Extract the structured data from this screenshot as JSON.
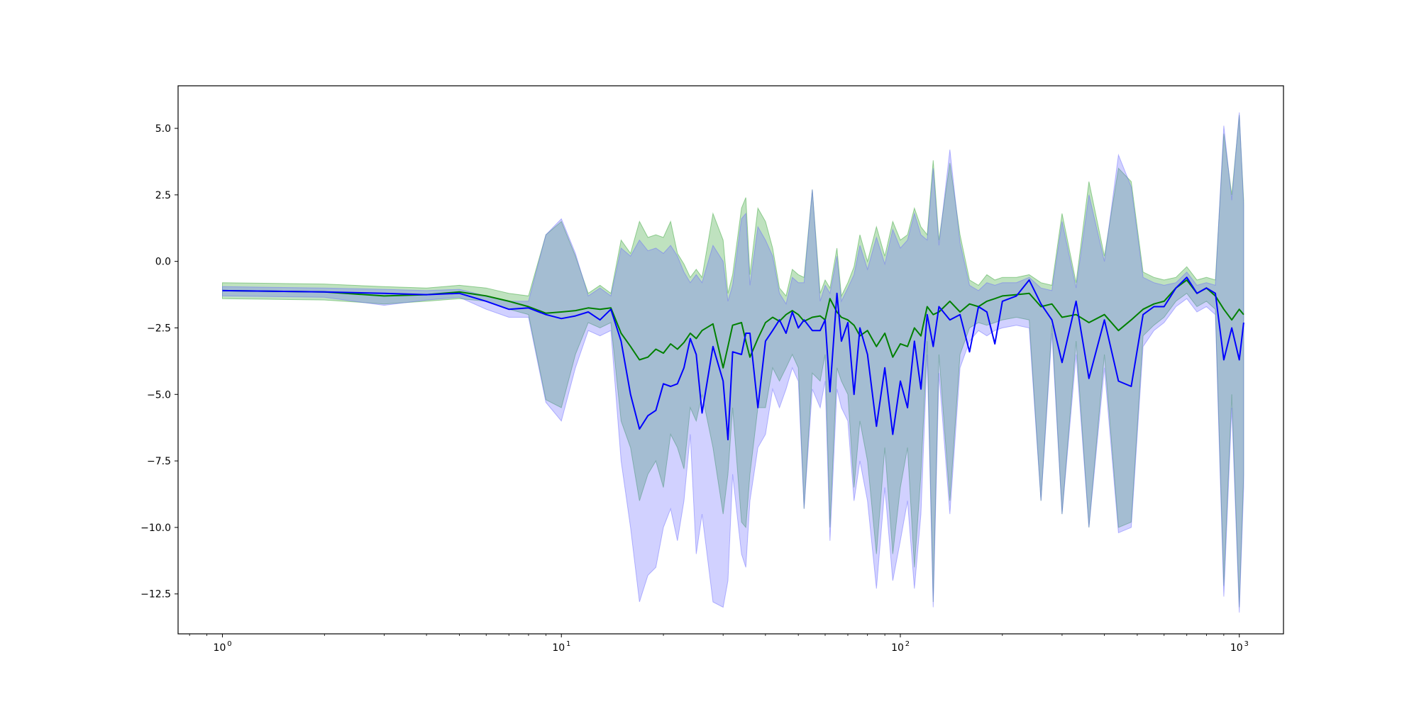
{
  "chart_data": {
    "type": "line",
    "title": "",
    "xlabel": "",
    "ylabel": "",
    "xscale": "log",
    "xlim": [
      0.74,
      1350
    ],
    "ylim": [
      -14.0,
      6.6
    ],
    "grid": false,
    "legend": "none",
    "x_ticks": [
      {
        "value": 1,
        "base": "10",
        "exp": "0"
      },
      {
        "value": 10,
        "base": "10",
        "exp": "1"
      },
      {
        "value": 100,
        "base": "10",
        "exp": "2"
      },
      {
        "value": 1000,
        "base": "10",
        "exp": "3"
      }
    ],
    "y_ticks": [
      {
        "value": 5.0,
        "label": "5.0"
      },
      {
        "value": 2.5,
        "label": "2.5"
      },
      {
        "value": 0.0,
        "label": "0.0"
      },
      {
        "value": -2.5,
        "label": "−2.5"
      },
      {
        "value": -5.0,
        "label": "−5.0"
      },
      {
        "value": -7.5,
        "label": "−7.5"
      },
      {
        "value": -10.0,
        "label": "−10.0"
      },
      {
        "value": -12.5,
        "label": "−12.5"
      }
    ],
    "series": [
      {
        "color": "#008000",
        "band_color": "#2ca02c",
        "x": [
          1,
          2,
          3,
          4,
          5,
          6,
          7,
          8,
          9,
          10,
          11,
          12,
          13,
          14,
          15,
          16,
          17,
          18,
          19,
          20,
          21,
          22,
          23,
          24,
          25,
          26,
          28,
          30,
          31,
          32,
          34,
          35,
          36,
          38,
          40,
          42,
          44,
          46,
          48,
          50,
          52,
          55,
          58,
          60,
          62,
          65,
          67,
          70,
          73,
          76,
          80,
          85,
          90,
          95,
          100,
          105,
          110,
          115,
          120,
          125,
          130,
          140,
          150,
          160,
          170,
          180,
          190,
          200,
          220,
          240,
          260,
          280,
          300,
          330,
          360,
          400,
          440,
          480,
          520,
          560,
          600,
          650,
          700,
          750,
          800,
          850,
          900,
          950,
          1000,
          1030
        ],
        "y": [
          -1.1,
          -1.15,
          -1.3,
          -1.25,
          -1.15,
          -1.3,
          -1.5,
          -1.7,
          -1.95,
          -1.9,
          -1.85,
          -1.75,
          -1.8,
          -1.75,
          -2.7,
          -3.2,
          -3.7,
          -3.6,
          -3.3,
          -3.45,
          -3.1,
          -3.3,
          -3.05,
          -2.7,
          -2.9,
          -2.6,
          -2.35,
          -4.0,
          -3.2,
          -2.4,
          -2.3,
          -3.0,
          -3.6,
          -2.9,
          -2.3,
          -2.1,
          -2.25,
          -2.0,
          -1.85,
          -2.0,
          -2.25,
          -2.1,
          -2.05,
          -2.2,
          -1.4,
          -1.9,
          -2.1,
          -2.2,
          -2.4,
          -2.8,
          -2.6,
          -3.2,
          -2.7,
          -3.6,
          -3.1,
          -3.2,
          -2.5,
          -2.8,
          -1.7,
          -2.0,
          -1.9,
          -1.5,
          -1.9,
          -1.6,
          -1.7,
          -1.5,
          -1.4,
          -1.3,
          -1.25,
          -1.2,
          -1.7,
          -1.6,
          -2.1,
          -2.0,
          -2.3,
          -2.0,
          -2.6,
          -2.2,
          -1.8,
          -1.6,
          -1.5,
          -1.0,
          -0.7,
          -1.2,
          -1.0,
          -1.3,
          -1.8,
          -2.2,
          -1.8,
          -2.0
        ],
        "upper": [
          -0.8,
          -0.85,
          -0.95,
          -1.0,
          -0.9,
          -1.0,
          -1.2,
          -1.3,
          1.0,
          1.5,
          0.2,
          -1.2,
          -0.9,
          -1.2,
          0.8,
          0.3,
          1.5,
          0.9,
          1.0,
          0.9,
          1.5,
          0.3,
          -0.1,
          -0.6,
          -0.3,
          -0.6,
          1.8,
          0.8,
          -1.2,
          -0.5,
          2.0,
          2.4,
          -0.5,
          2.0,
          1.5,
          0.5,
          -1.0,
          -1.3,
          -0.3,
          -0.5,
          -0.6,
          2.7,
          -1.2,
          -0.7,
          -1.0,
          0.5,
          -1.3,
          -0.8,
          -0.2,
          1.0,
          0.0,
          1.3,
          0.2,
          1.5,
          0.8,
          1.0,
          2.0,
          1.3,
          1.0,
          3.8,
          0.8,
          3.7,
          1.0,
          -0.7,
          -0.9,
          -0.5,
          -0.7,
          -0.6,
          -0.6,
          -0.5,
          -0.8,
          -0.9,
          1.8,
          -0.8,
          3.0,
          0.2,
          3.5,
          3.0,
          -0.4,
          -0.6,
          -0.7,
          -0.6,
          -0.2,
          -0.7,
          -0.6,
          -0.7,
          4.8,
          2.5,
          5.5,
          2.3
        ],
        "lower": [
          -1.4,
          -1.45,
          -1.6,
          -1.5,
          -1.4,
          -1.5,
          -1.8,
          -2.0,
          -5.2,
          -5.5,
          -3.5,
          -2.3,
          -2.5,
          -2.3,
          -6.0,
          -7.0,
          -9.0,
          -8.0,
          -7.5,
          -8.5,
          -6.5,
          -7.0,
          -7.8,
          -5.5,
          -6.0,
          -5.0,
          -7.0,
          -9.5,
          -8.0,
          -5.5,
          -9.8,
          -10.0,
          -8.0,
          -5.5,
          -5.5,
          -4.0,
          -4.5,
          -4.0,
          -3.5,
          -4.0,
          -9.3,
          -4.2,
          -4.5,
          -3.5,
          -10.0,
          -4.0,
          -4.5,
          -5.0,
          -8.5,
          -6.0,
          -7.5,
          -11.0,
          -7.0,
          -11.0,
          -8.5,
          -7.0,
          -11.5,
          -8.0,
          -3.0,
          -12.8,
          -3.5,
          -9.0,
          -3.5,
          -2.5,
          -2.3,
          -2.4,
          -2.3,
          -2.2,
          -2.1,
          -2.2,
          -9.0,
          -2.4,
          -9.5,
          -3.0,
          -10.0,
          -3.5,
          -10.0,
          -9.8,
          -2.8,
          -2.4,
          -2.1,
          -1.5,
          -1.2,
          -1.7,
          -1.5,
          -1.8,
          -12.2,
          -5.0,
          -13.0,
          -8.0
        ]
      },
      {
        "color": "#0000ff",
        "band_color": "#6666ff",
        "x": [
          1,
          2,
          3,
          4,
          5,
          6,
          7,
          8,
          9,
          10,
          11,
          12,
          13,
          14,
          15,
          16,
          17,
          18,
          19,
          20,
          21,
          22,
          23,
          24,
          25,
          26,
          28,
          30,
          31,
          32,
          34,
          35,
          36,
          38,
          40,
          42,
          44,
          46,
          48,
          50,
          52,
          55,
          58,
          60,
          62,
          65,
          67,
          70,
          73,
          76,
          80,
          85,
          90,
          95,
          100,
          105,
          110,
          115,
          120,
          125,
          130,
          140,
          150,
          160,
          170,
          180,
          190,
          200,
          220,
          240,
          260,
          280,
          300,
          330,
          360,
          400,
          440,
          480,
          520,
          560,
          600,
          650,
          700,
          750,
          800,
          850,
          900,
          950,
          1000,
          1030
        ],
        "y": [
          -1.1,
          -1.15,
          -1.2,
          -1.25,
          -1.2,
          -1.5,
          -1.8,
          -1.75,
          -2.0,
          -2.15,
          -2.05,
          -1.9,
          -2.2,
          -1.8,
          -3.0,
          -5.0,
          -6.3,
          -5.8,
          -5.6,
          -4.6,
          -4.7,
          -4.6,
          -4.0,
          -2.9,
          -3.5,
          -5.7,
          -3.2,
          -4.5,
          -6.7,
          -3.4,
          -3.5,
          -2.7,
          -2.7,
          -5.5,
          -3.0,
          -2.6,
          -2.2,
          -2.7,
          -1.9,
          -2.5,
          -2.2,
          -2.6,
          -2.6,
          -2.2,
          -4.9,
          -1.2,
          -3.0,
          -2.3,
          -5.0,
          -2.5,
          -3.5,
          -6.2,
          -4.0,
          -6.5,
          -4.5,
          -5.5,
          -3.0,
          -4.8,
          -2.0,
          -3.2,
          -1.7,
          -2.2,
          -2.0,
          -3.4,
          -1.7,
          -1.9,
          -3.1,
          -1.5,
          -1.3,
          -0.7,
          -1.6,
          -2.2,
          -3.8,
          -1.5,
          -4.4,
          -2.2,
          -4.5,
          -4.7,
          -2.0,
          -1.7,
          -1.7,
          -1.0,
          -0.6,
          -1.2,
          -1.0,
          -1.2,
          -3.7,
          -2.5,
          -3.7,
          -2.3
        ],
        "upper": [
          -0.95,
          -1.0,
          -1.05,
          -1.1,
          -1.05,
          -1.3,
          -1.5,
          -1.5,
          1.0,
          1.6,
          0.3,
          -1.3,
          -1.0,
          -1.3,
          0.5,
          0.2,
          0.8,
          0.4,
          0.5,
          0.3,
          0.6,
          0.2,
          -0.4,
          -0.8,
          -0.5,
          -0.8,
          0.6,
          0.0,
          -1.5,
          -0.9,
          1.6,
          1.8,
          -0.9,
          1.3,
          0.8,
          0.2,
          -1.2,
          -1.6,
          -0.6,
          -0.8,
          -0.8,
          2.7,
          -1.5,
          -0.9,
          -1.2,
          0.2,
          -1.5,
          -1.0,
          -0.5,
          0.6,
          -0.3,
          0.9,
          -0.1,
          1.2,
          0.5,
          0.8,
          1.8,
          1.0,
          0.8,
          3.5,
          0.6,
          4.2,
          0.7,
          -0.9,
          -1.1,
          -0.8,
          -0.9,
          -0.8,
          -0.8,
          -0.6,
          -1.0,
          -1.1,
          1.5,
          -1.0,
          2.5,
          0.0,
          4.0,
          2.8,
          -0.6,
          -0.8,
          -0.9,
          -0.8,
          -0.4,
          -0.9,
          -0.8,
          -0.9,
          5.1,
          2.3,
          5.6,
          2.1
        ],
        "lower": [
          -1.3,
          -1.35,
          -1.65,
          -1.45,
          -1.35,
          -1.8,
          -2.1,
          -2.1,
          -5.3,
          -6.0,
          -4.0,
          -2.6,
          -2.8,
          -2.6,
          -7.5,
          -10.0,
          -12.8,
          -11.8,
          -11.5,
          -10.0,
          -9.3,
          -10.5,
          -9.0,
          -6.5,
          -11.0,
          -9.5,
          -12.8,
          -13.0,
          -12.0,
          -8.0,
          -11.0,
          -11.5,
          -9.0,
          -7.0,
          -6.5,
          -4.8,
          -5.5,
          -4.8,
          -4.0,
          -4.5,
          -9.3,
          -4.8,
          -5.5,
          -4.5,
          -10.5,
          -4.8,
          -5.5,
          -6.0,
          -9.0,
          -7.5,
          -9.0,
          -12.3,
          -8.5,
          -12.0,
          -10.5,
          -9.0,
          -12.3,
          -9.5,
          -3.5,
          -13.0,
          -4.2,
          -9.5,
          -4.0,
          -3.0,
          -2.6,
          -2.8,
          -2.6,
          -2.5,
          -2.4,
          -2.5,
          -9.0,
          -2.7,
          -9.5,
          -3.5,
          -10.0,
          -4.0,
          -10.2,
          -10.0,
          -3.2,
          -2.6,
          -2.3,
          -1.7,
          -1.4,
          -1.9,
          -1.7,
          -2.0,
          -12.6,
          -5.5,
          -13.2,
          -8.5
        ]
      }
    ]
  }
}
